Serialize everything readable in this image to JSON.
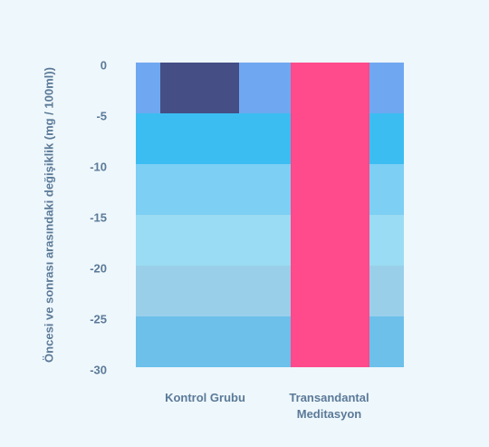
{
  "chart_data": {
    "type": "bar",
    "y_axis_label": "Öncesi ve sonrası arasındaki değişiklik (mg / 100ml))",
    "categories": [
      "Kontrol Grubu",
      "Transandantal Meditasyon"
    ],
    "series": [
      {
        "name": "Kontrol Grubu",
        "color": "#454e85",
        "values": [
          -5,
          null
        ]
      },
      {
        "name": "Transandantal Meditasyon",
        "color": "#ff4b8b",
        "values": [
          null,
          -30
        ]
      }
    ],
    "ylim": [
      0,
      -30
    ],
    "yticks": [
      0,
      -5,
      -10,
      -15,
      -20,
      -25,
      -30
    ],
    "band_colors": [
      "#6fa8f0",
      "#3bbdf2",
      "#7dcff4",
      "#9adcf3",
      "#9acfea",
      "#6cc0ea"
    ]
  }
}
